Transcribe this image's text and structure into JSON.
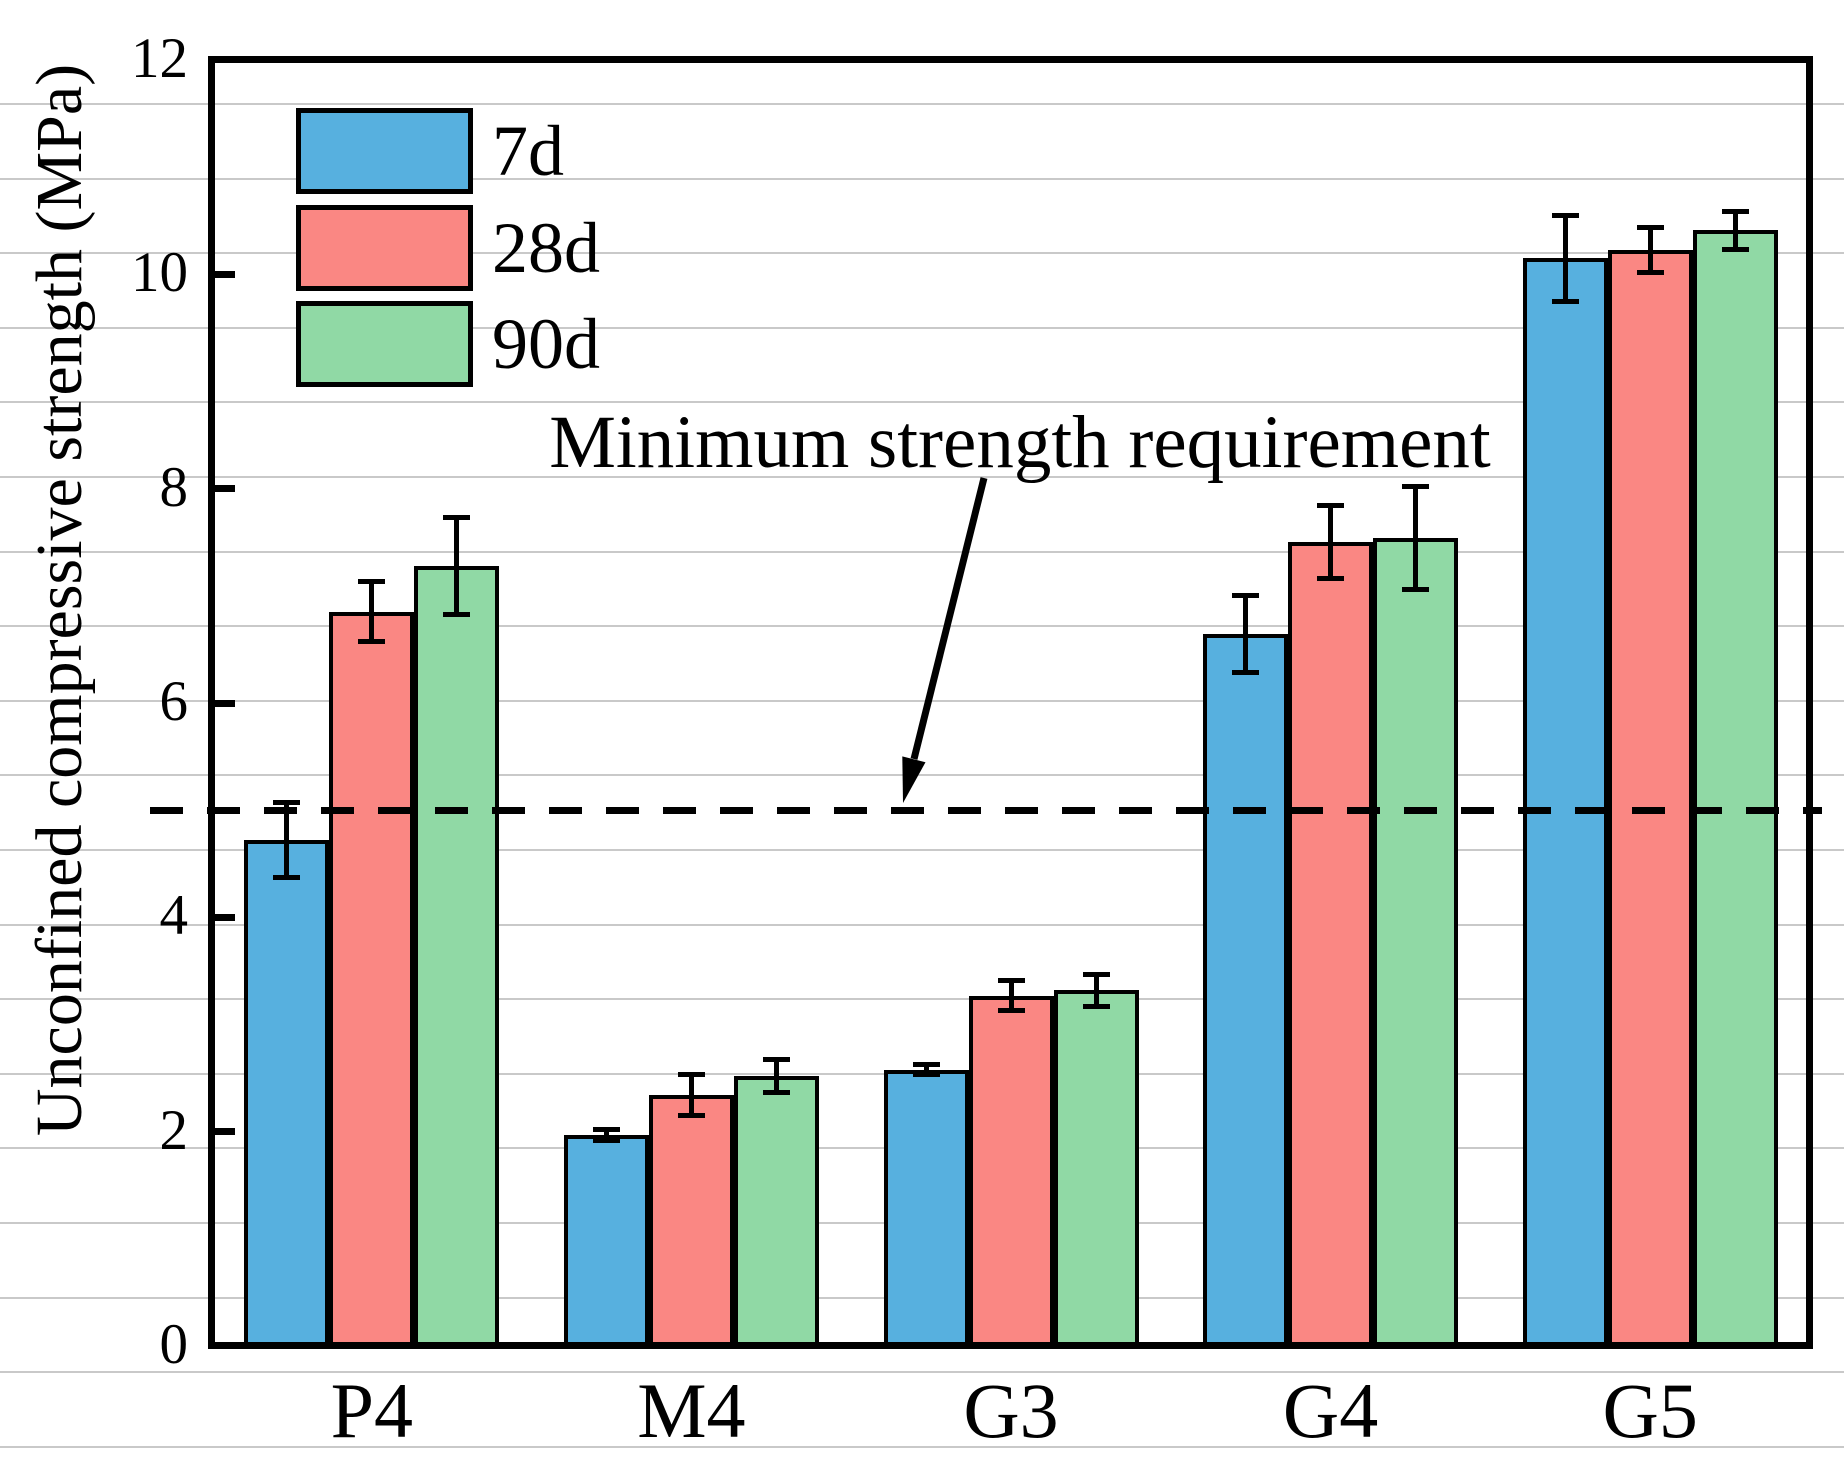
{
  "chart_data": {
    "type": "bar",
    "title": "",
    "xlabel": "",
    "ylabel": "Unconfined compressive strength (MPa)",
    "ylim": [
      0,
      12
    ],
    "yticks": [
      12,
      10,
      8,
      6,
      4,
      2,
      0
    ],
    "categories": [
      "P4",
      "M4",
      "G3",
      "G4",
      "G5"
    ],
    "series": [
      {
        "name": "7d",
        "color": "#57b0df",
        "values": [
          4.72,
          1.97,
          2.58,
          6.64,
          10.15
        ],
        "errors": [
          0.35,
          0.05,
          0.05,
          0.36,
          0.4
        ]
      },
      {
        "name": "28d",
        "color": "#fa8783",
        "values": [
          6.85,
          2.34,
          3.27,
          7.5,
          10.23
        ],
        "errors": [
          0.28,
          0.19,
          0.14,
          0.34,
          0.21
        ]
      },
      {
        "name": "90d",
        "color": "#90d9a5",
        "values": [
          7.28,
          2.52,
          3.32,
          7.54,
          10.41
        ],
        "errors": [
          0.45,
          0.15,
          0.15,
          0.48,
          0.18
        ]
      }
    ],
    "reference_line": {
      "value": 5,
      "style": "dashed",
      "label": "Minimum strength requirement"
    },
    "legend_position": "top-left",
    "grid": "faint full-width horizontal lines",
    "colors": {
      "axis": "#000000",
      "gridline": "#c9c9c9",
      "background": "#ffffff"
    }
  }
}
